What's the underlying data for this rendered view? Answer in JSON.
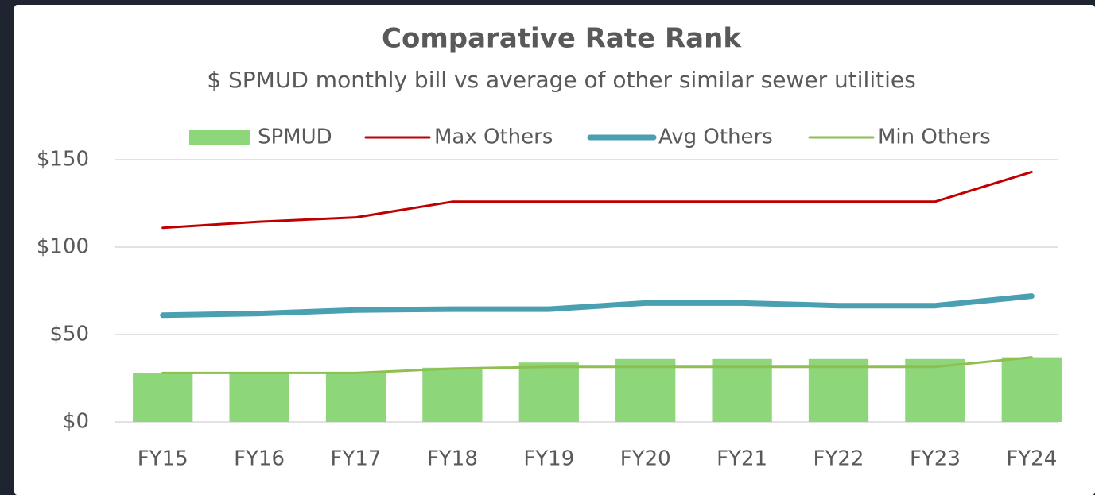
{
  "chart_data": {
    "type": "bar-line",
    "title": "Comparative Rate Rank",
    "subtitle": "$ SPMUD monthly bill vs average of other similar sewer utilities",
    "categories": [
      "FY15",
      "FY16",
      "FY17",
      "FY18",
      "FY19",
      "FY20",
      "FY21",
      "FY22",
      "FY23",
      "FY24"
    ],
    "series": [
      {
        "name": "SPMUD",
        "type": "bar",
        "color": "#8dd67a",
        "values": [
          28,
          28,
          28,
          31,
          34,
          36,
          36,
          36,
          36,
          37
        ]
      },
      {
        "name": "Max Others",
        "type": "line",
        "color": "#c00000",
        "width": 3,
        "values": [
          111,
          114.5,
          117,
          126,
          126,
          126,
          126,
          126,
          126,
          143
        ]
      },
      {
        "name": "Avg Others",
        "type": "line",
        "color": "#4a9fb0",
        "width": 7,
        "values": [
          61,
          62,
          64,
          64.5,
          64.5,
          68,
          68,
          66.5,
          66.5,
          72
        ]
      },
      {
        "name": "Min Others",
        "type": "line",
        "color": "#8fbf4f",
        "width": 3,
        "values": [
          28,
          28,
          28,
          30.5,
          31.5,
          31.5,
          31.5,
          31.5,
          31.5,
          37
        ]
      }
    ],
    "ylim": [
      0,
      150
    ],
    "yticks": [
      {
        "value": 0,
        "label": "$0"
      },
      {
        "value": 50,
        "label": "$50"
      },
      {
        "value": 100,
        "label": "$100"
      },
      {
        "value": 150,
        "label": "$150"
      }
    ],
    "grid": true,
    "legend": "top"
  }
}
